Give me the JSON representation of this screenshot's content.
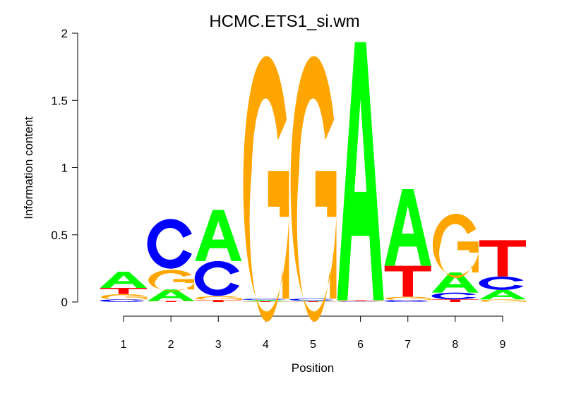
{
  "chart_data": {
    "type": "sequence-logo",
    "title": "HCMC.ETS1_si.wm",
    "xlabel": "Position",
    "ylabel": "Information content",
    "ylim": [
      0,
      2
    ],
    "yticks": [
      "0",
      "0.5",
      "1",
      "1.5",
      "2"
    ],
    "xticks": [
      "1",
      "2",
      "3",
      "4",
      "5",
      "6",
      "7",
      "8",
      "9"
    ],
    "colors": {
      "A": "#00FF00",
      "C": "#0000FF",
      "G": "#FFA500",
      "T": "#FF0000"
    },
    "positions": [
      [
        {
          "l": "C",
          "v": 0.02
        },
        {
          "l": "G",
          "v": 0.04
        },
        {
          "l": "T",
          "v": 0.045
        },
        {
          "l": "A",
          "v": 0.12
        }
      ],
      [
        {
          "l": "T",
          "v": 0.008
        },
        {
          "l": "A",
          "v": 0.085
        },
        {
          "l": "G",
          "v": 0.155
        },
        {
          "l": "C",
          "v": 0.37
        }
      ],
      [
        {
          "l": "T",
          "v": 0.015
        },
        {
          "l": "G",
          "v": 0.03
        },
        {
          "l": "C",
          "v": 0.26
        },
        {
          "l": "A",
          "v": 0.38
        }
      ],
      [
        {
          "l": "T",
          "v": 0.005
        },
        {
          "l": "A",
          "v": 0.01
        },
        {
          "l": "C",
          "v": 0.01
        },
        {
          "l": "G",
          "v": 1.9
        }
      ],
      [
        {
          "l": "T",
          "v": 0.005
        },
        {
          "l": "A",
          "v": 0.005
        },
        {
          "l": "C",
          "v": 0.015
        },
        {
          "l": "G",
          "v": 1.9
        }
      ],
      [
        {
          "l": "C",
          "v": 0.003
        },
        {
          "l": "G",
          "v": 0.005
        },
        {
          "l": "T",
          "v": 0.005
        },
        {
          "l": "A",
          "v": 1.92
        }
      ],
      [
        {
          "l": "C",
          "v": 0.015
        },
        {
          "l": "G",
          "v": 0.025
        },
        {
          "l": "T",
          "v": 0.23
        },
        {
          "l": "A",
          "v": 0.57
        }
      ],
      [
        {
          "l": "T",
          "v": 0.02
        },
        {
          "l": "C",
          "v": 0.05
        },
        {
          "l": "A",
          "v": 0.15
        },
        {
          "l": "G",
          "v": 0.46
        }
      ],
      [
        {
          "l": "G",
          "v": 0.02
        },
        {
          "l": "A",
          "v": 0.07
        },
        {
          "l": "C",
          "v": 0.1
        },
        {
          "l": "T",
          "v": 0.27
        }
      ]
    ]
  }
}
